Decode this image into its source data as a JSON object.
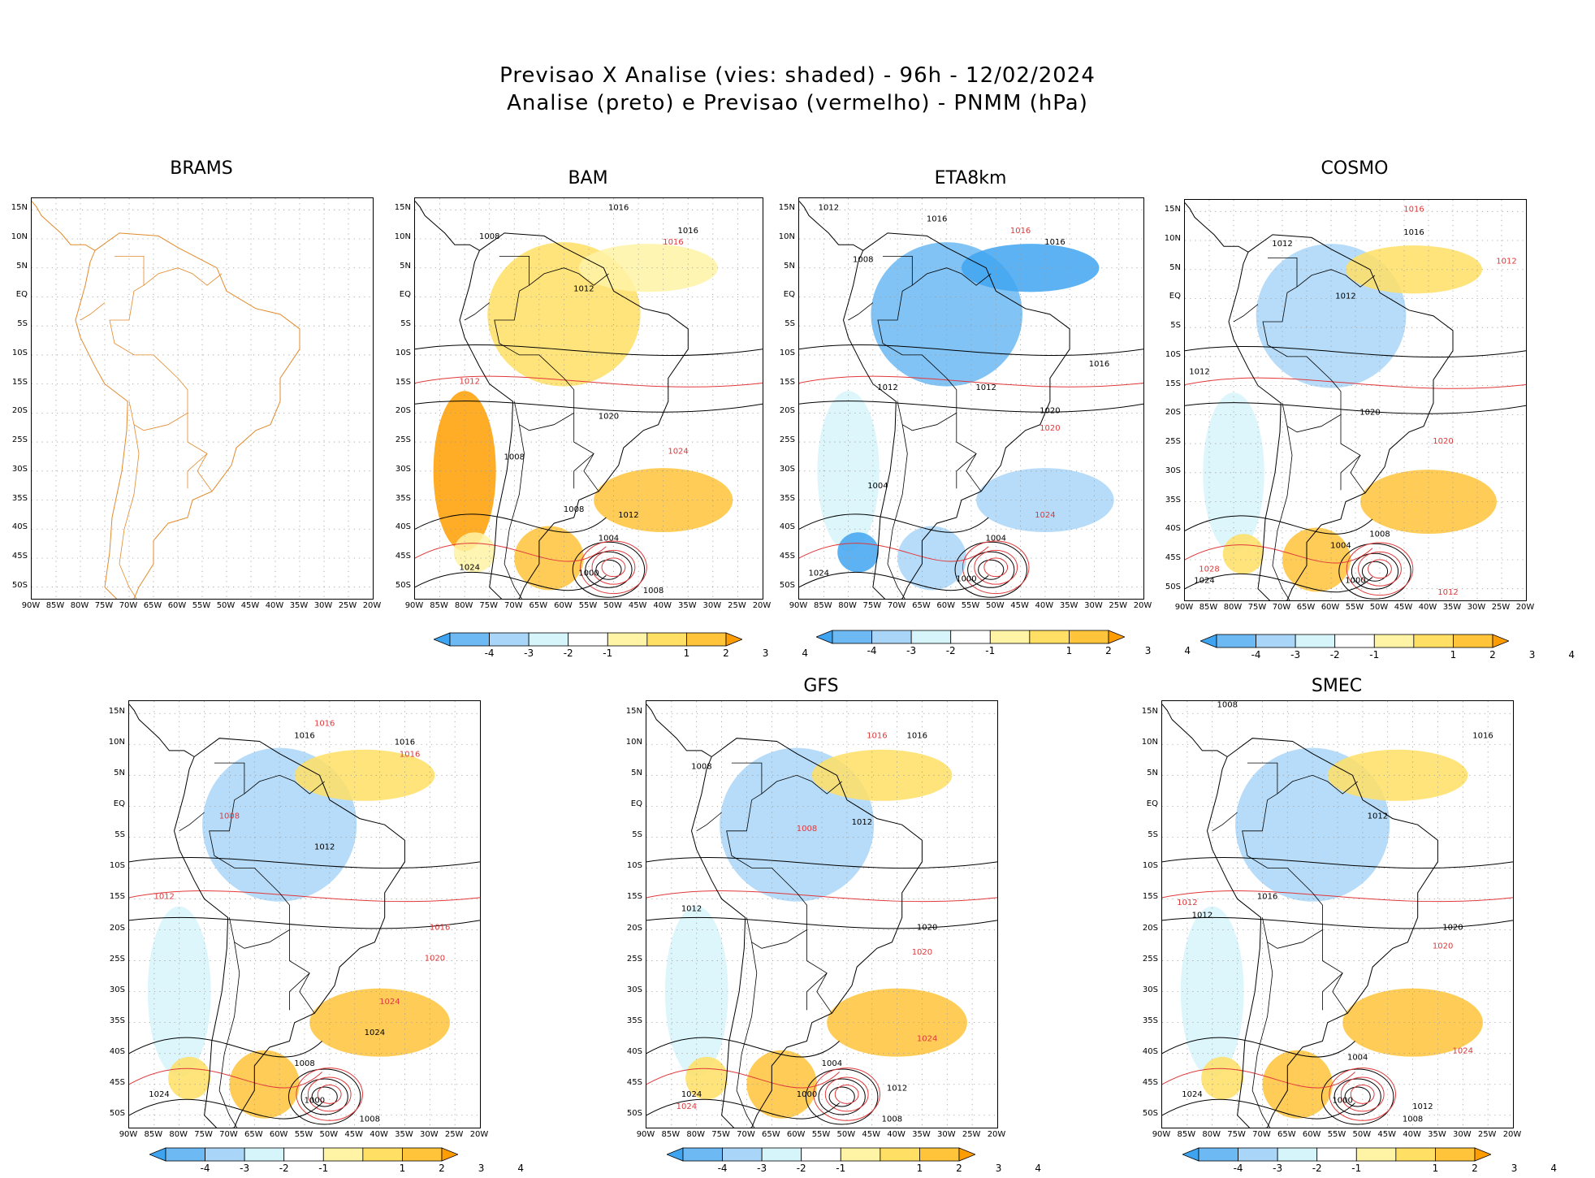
{
  "header": {
    "line1": "Previsao X Analise (vies: shaded) - 96h - 12/02/2024",
    "line2": "Analise (preto) e Previsao (vermelho) - PNMM (hPa)"
  },
  "axes": {
    "lat_labels": [
      "15N",
      "10N",
      "5N",
      "EQ",
      "5S",
      "10S",
      "15S",
      "20S",
      "25S",
      "30S",
      "35S",
      "40S",
      "45S",
      "50S"
    ],
    "lon_labels": [
      "90W",
      "85W",
      "80W",
      "75W",
      "70W",
      "65W",
      "60W",
      "55W",
      "50W",
      "45W",
      "40W",
      "35W",
      "30W",
      "25W",
      "20W"
    ]
  },
  "colorbar": {
    "labels": [
      "-4",
      "-3",
      "-2",
      "-1",
      "1",
      "2",
      "3",
      "4"
    ],
    "colors": [
      "#3fa4f0",
      "#6cb9f3",
      "#a9d6f8",
      "#d6f5fb",
      "#ffffff",
      "#fff3a6",
      "#ffdf64",
      "#ffc43a",
      "#ff9d00"
    ]
  },
  "colors": {
    "analysis": "#000000",
    "forecast": "#e0383a",
    "coast": "#e28a2c",
    "grid": "#9a9a9a"
  },
  "chart_data": [
    {
      "type": "heatmap",
      "model": "BRAMS",
      "title": "BRAMS",
      "shaded": false,
      "xlim": [
        -90,
        -20
      ],
      "ylim": [
        -52,
        17
      ],
      "isobar_labels": []
    },
    {
      "type": "heatmap",
      "model": "BAM",
      "title": "BAM",
      "shaded": true,
      "bias_tendency": "positive",
      "xlim": [
        -90,
        -20
      ],
      "ylim": [
        -52,
        17
      ],
      "isobar_labels": [
        {
          "lon": -49,
          "lat": 15,
          "text": "1016",
          "color": "black"
        },
        {
          "lon": -35,
          "lat": 11,
          "text": "1016",
          "color": "black"
        },
        {
          "lon": -38,
          "lat": 9,
          "text": "1016",
          "color": "red"
        },
        {
          "lon": -75,
          "lat": 10,
          "text": "1008",
          "color": "black"
        },
        {
          "lon": -56,
          "lat": 1,
          "text": "1012",
          "color": "black"
        },
        {
          "lon": -79,
          "lat": -15,
          "text": "1012",
          "color": "red"
        },
        {
          "lon": -51,
          "lat": -21,
          "text": "1020",
          "color": "black"
        },
        {
          "lon": -37,
          "lat": -27,
          "text": "1024",
          "color": "red"
        },
        {
          "lon": -70,
          "lat": -28,
          "text": "1008",
          "color": "black"
        },
        {
          "lon": -58,
          "lat": -37,
          "text": "1008",
          "color": "black"
        },
        {
          "lon": -47,
          "lat": -38,
          "text": "1012",
          "color": "black"
        },
        {
          "lon": -51,
          "lat": -42,
          "text": "1004",
          "color": "black"
        },
        {
          "lon": -55,
          "lat": -48,
          "text": "1000",
          "color": "black"
        },
        {
          "lon": -79,
          "lat": -47,
          "text": "1024",
          "color": "black"
        },
        {
          "lon": -42,
          "lat": -51,
          "text": "1008",
          "color": "black"
        }
      ]
    },
    {
      "type": "heatmap",
      "model": "ETA8km",
      "title": "ETA8km",
      "shaded": true,
      "bias_tendency": "negative",
      "xlim": [
        -90,
        -20
      ],
      "ylim": [
        -52,
        17
      ],
      "isobar_labels": [
        {
          "lon": -84,
          "lat": 15,
          "text": "1012",
          "color": "black"
        },
        {
          "lon": -62,
          "lat": 13,
          "text": "1016",
          "color": "black"
        },
        {
          "lon": -45,
          "lat": 11,
          "text": "1016",
          "color": "red"
        },
        {
          "lon": -38,
          "lat": 9,
          "text": "1016",
          "color": "black"
        },
        {
          "lon": -77,
          "lat": 6,
          "text": "1008",
          "color": "black"
        },
        {
          "lon": -52,
          "lat": -16,
          "text": "1012",
          "color": "black"
        },
        {
          "lon": -72,
          "lat": -16,
          "text": "1012",
          "color": "black"
        },
        {
          "lon": -29,
          "lat": -12,
          "text": "1016",
          "color": "black"
        },
        {
          "lon": -39,
          "lat": -20,
          "text": "1020",
          "color": "black"
        },
        {
          "lon": -39,
          "lat": -23,
          "text": "1020",
          "color": "red"
        },
        {
          "lon": -40,
          "lat": -38,
          "text": "1024",
          "color": "red"
        },
        {
          "lon": -74,
          "lat": -33,
          "text": "1004",
          "color": "black"
        },
        {
          "lon": -50,
          "lat": -42,
          "text": "1004",
          "color": "black"
        },
        {
          "lon": -56,
          "lat": -49,
          "text": "1000",
          "color": "black"
        },
        {
          "lon": -86,
          "lat": -48,
          "text": "1024",
          "color": "black"
        }
      ]
    },
    {
      "type": "heatmap",
      "model": "COSMO",
      "title": "COSMO",
      "shaded": true,
      "bias_tendency": "mixed",
      "xlim": [
        -90,
        -20
      ],
      "ylim": [
        -52,
        17
      ],
      "isobar_labels": [
        {
          "lon": -43,
          "lat": 15,
          "text": "1016",
          "color": "red"
        },
        {
          "lon": -43,
          "lat": 11,
          "text": "1016",
          "color": "black"
        },
        {
          "lon": -70,
          "lat": 9,
          "text": "1012",
          "color": "black"
        },
        {
          "lon": -57,
          "lat": 0,
          "text": "1012",
          "color": "black"
        },
        {
          "lon": -24,
          "lat": 6,
          "text": "1012",
          "color": "red"
        },
        {
          "lon": -87,
          "lat": -13,
          "text": "1012",
          "color": "black"
        },
        {
          "lon": -52,
          "lat": -20,
          "text": "1020",
          "color": "black"
        },
        {
          "lon": -37,
          "lat": -25,
          "text": "1020",
          "color": "red"
        },
        {
          "lon": -50,
          "lat": -41,
          "text": "1008",
          "color": "black"
        },
        {
          "lon": -58,
          "lat": -43,
          "text": "1004",
          "color": "black"
        },
        {
          "lon": -55,
          "lat": -49,
          "text": "1000",
          "color": "black"
        },
        {
          "lon": -85,
          "lat": -47,
          "text": "1028",
          "color": "red"
        },
        {
          "lon": -86,
          "lat": -49,
          "text": "1024",
          "color": "black"
        },
        {
          "lon": -36,
          "lat": -51,
          "text": "1012",
          "color": "red"
        }
      ]
    },
    {
      "type": "heatmap",
      "model": "",
      "title": "",
      "shaded": true,
      "bias_tendency": "mixed",
      "xlim": [
        -90,
        -20
      ],
      "ylim": [
        -52,
        17
      ],
      "isobar_labels": [
        {
          "lon": -51,
          "lat": 13,
          "text": "1016",
          "color": "red"
        },
        {
          "lon": -55,
          "lat": 11,
          "text": "1016",
          "color": "black"
        },
        {
          "lon": -35,
          "lat": 10,
          "text": "1016",
          "color": "black"
        },
        {
          "lon": -34,
          "lat": 8,
          "text": "1016",
          "color": "red"
        },
        {
          "lon": -70,
          "lat": -2,
          "text": "1008",
          "color": "red"
        },
        {
          "lon": -51,
          "lat": -7,
          "text": "1012",
          "color": "black"
        },
        {
          "lon": -83,
          "lat": -15,
          "text": "1012",
          "color": "red"
        },
        {
          "lon": -28,
          "lat": -20,
          "text": "1016",
          "color": "red"
        },
        {
          "lon": -29,
          "lat": -25,
          "text": "1020",
          "color": "red"
        },
        {
          "lon": -38,
          "lat": -32,
          "text": "1024",
          "color": "red"
        },
        {
          "lon": -41,
          "lat": -37,
          "text": "1024",
          "color": "black"
        },
        {
          "lon": -55,
          "lat": -42,
          "text": "1008",
          "color": "black"
        },
        {
          "lon": -53,
          "lat": -48,
          "text": "1000",
          "color": "black"
        },
        {
          "lon": -84,
          "lat": -47,
          "text": "1024",
          "color": "black"
        },
        {
          "lon": -42,
          "lat": -51,
          "text": "1008",
          "color": "black"
        }
      ]
    },
    {
      "type": "heatmap",
      "model": "GFS",
      "title": "GFS",
      "shaded": true,
      "bias_tendency": "mixed",
      "xlim": [
        -90,
        -20
      ],
      "ylim": [
        -52,
        17
      ],
      "isobar_labels": [
        {
          "lon": -36,
          "lat": 11,
          "text": "1016",
          "color": "black"
        },
        {
          "lon": -44,
          "lat": 11,
          "text": "1016",
          "color": "red"
        },
        {
          "lon": -79,
          "lat": 6,
          "text": "1008",
          "color": "black"
        },
        {
          "lon": -58,
          "lat": -4,
          "text": "1008",
          "color": "red"
        },
        {
          "lon": -47,
          "lat": -3,
          "text": "1012",
          "color": "black"
        },
        {
          "lon": -81,
          "lat": -17,
          "text": "1012",
          "color": "black"
        },
        {
          "lon": -34,
          "lat": -20,
          "text": "1020",
          "color": "black"
        },
        {
          "lon": -35,
          "lat": -24,
          "text": "1020",
          "color": "red"
        },
        {
          "lon": -34,
          "lat": -38,
          "text": "1024",
          "color": "red"
        },
        {
          "lon": -53,
          "lat": -42,
          "text": "1004",
          "color": "black"
        },
        {
          "lon": -58,
          "lat": -47,
          "text": "1000",
          "color": "black"
        },
        {
          "lon": -81,
          "lat": -47,
          "text": "1024",
          "color": "black"
        },
        {
          "lon": -82,
          "lat": -49,
          "text": "1024",
          "color": "red"
        },
        {
          "lon": -40,
          "lat": -46,
          "text": "1012",
          "color": "black"
        },
        {
          "lon": -41,
          "lat": -51,
          "text": "1008",
          "color": "black"
        }
      ]
    },
    {
      "type": "heatmap",
      "model": "SMEC",
      "title": "SMEC",
      "shaded": true,
      "bias_tendency": "mixed",
      "xlim": [
        -90,
        -20
      ],
      "ylim": [
        -52,
        17
      ],
      "isobar_labels": [
        {
          "lon": -26,
          "lat": 11,
          "text": "1016",
          "color": "black"
        },
        {
          "lon": -77,
          "lat": 16,
          "text": "1008",
          "color": "black"
        },
        {
          "lon": -47,
          "lat": -2,
          "text": "1012",
          "color": "black"
        },
        {
          "lon": -85,
          "lat": -16,
          "text": "1012",
          "color": "red"
        },
        {
          "lon": -82,
          "lat": -18,
          "text": "1012",
          "color": "black"
        },
        {
          "lon": -69,
          "lat": -15,
          "text": "1016",
          "color": "black"
        },
        {
          "lon": -32,
          "lat": -20,
          "text": "1020",
          "color": "black"
        },
        {
          "lon": -34,
          "lat": -23,
          "text": "1020",
          "color": "red"
        },
        {
          "lon": -30,
          "lat": -40,
          "text": "1024",
          "color": "red"
        },
        {
          "lon": -51,
          "lat": -41,
          "text": "1004",
          "color": "black"
        },
        {
          "lon": -54,
          "lat": -48,
          "text": "1000",
          "color": "black"
        },
        {
          "lon": -84,
          "lat": -47,
          "text": "1024",
          "color": "black"
        },
        {
          "lon": -38,
          "lat": -49,
          "text": "1012",
          "color": "black"
        },
        {
          "lon": -40,
          "lat": -51,
          "text": "1008",
          "color": "black"
        }
      ]
    }
  ]
}
